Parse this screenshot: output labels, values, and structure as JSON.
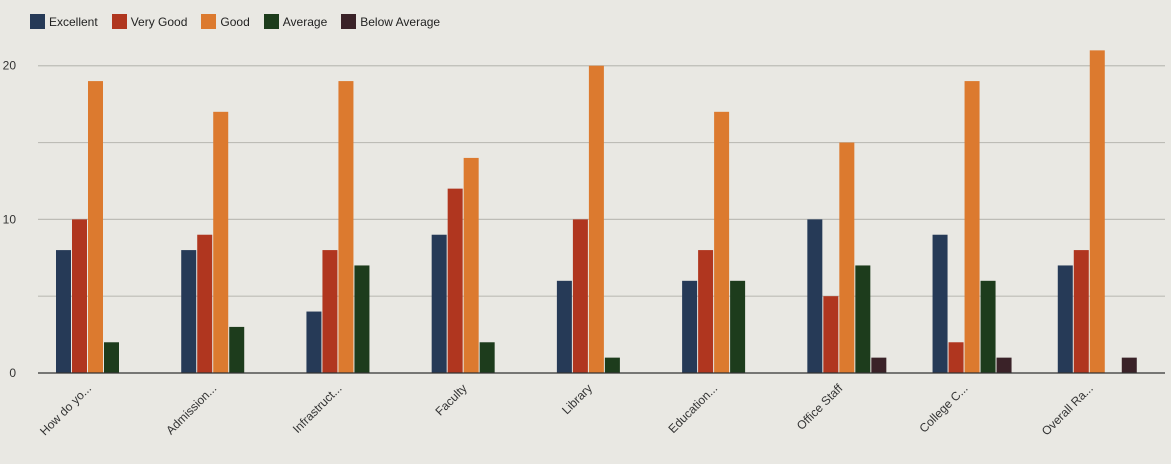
{
  "chart_data": {
    "type": "bar",
    "categories": [
      "How do yo...",
      "Admission...",
      "Infrastruct...",
      "Faculty",
      "Library",
      "Education...",
      "Office Staff",
      "College C...",
      "Overall Ra..."
    ],
    "series": [
      {
        "name": "Excellent",
        "color": "#263a57",
        "values": [
          8,
          8,
          4,
          9,
          6,
          6,
          10,
          9,
          7
        ]
      },
      {
        "name": "Very Good",
        "color": "#b0361f",
        "values": [
          10,
          9,
          8,
          12,
          10,
          8,
          5,
          2,
          8
        ]
      },
      {
        "name": "Good",
        "color": "#dc7a2f",
        "values": [
          19,
          17,
          19,
          14,
          20,
          17,
          15,
          19,
          21
        ]
      },
      {
        "name": "Average",
        "color": "#1d3c1c",
        "values": [
          2,
          3,
          7,
          2,
          1,
          6,
          7,
          6,
          0
        ]
      },
      {
        "name": "Below Average",
        "color": "#3a2228",
        "values": [
          0,
          0,
          0,
          0,
          0,
          0,
          1,
          1,
          1
        ]
      }
    ],
    "yticks": [
      0,
      10,
      20
    ],
    "ylim": [
      0,
      22
    ],
    "grid": true,
    "legend_position": "top-left",
    "title": "",
    "xlabel": "",
    "ylabel": ""
  }
}
